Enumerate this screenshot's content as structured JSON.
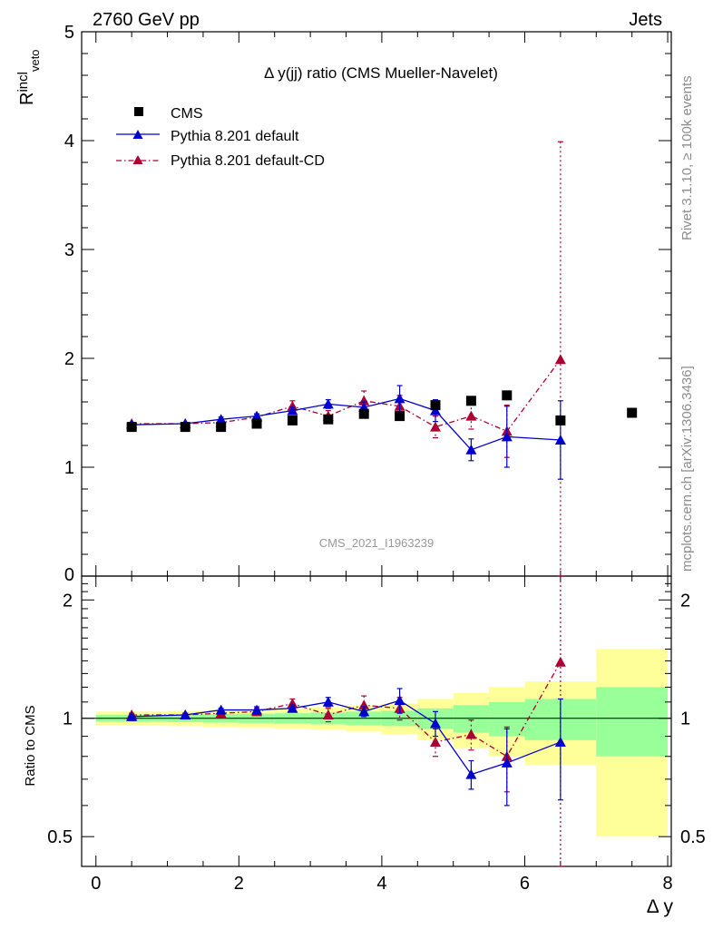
{
  "header": {
    "left": "2760 GeV pp",
    "right": "Jets"
  },
  "side_text": {
    "top": "Rivet 3.1.10, ≥ 100k events",
    "bottom": "mcplots.cern.ch [arXiv:1306.3436]"
  },
  "watermark": "CMS_2021_I1963239",
  "chart_data": {
    "type": "scatter",
    "title": "Δ y(jj) ratio (CMS Mueller-Navelet)",
    "xlabel": "Δ y",
    "xlim": [
      -0.2,
      8.05
    ],
    "x_ticks": [
      "0",
      "2",
      "4",
      "6",
      "8"
    ],
    "top_panel": {
      "ylabel": "R",
      "ylabel_sup": "incl",
      "ylabel_sub": "veto",
      "ylim": [
        0,
        5
      ],
      "y_ticks": [
        "0",
        "1",
        "2",
        "3",
        "4",
        "5"
      ],
      "legend": {
        "placement": "top-left",
        "entries": [
          "CMS",
          "Pythia 8.201 default",
          "Pythia 8.201 default-CD"
        ]
      },
      "series": [
        {
          "name": "CMS",
          "marker": "square",
          "color": "#000000",
          "x": [
            0.5,
            1.25,
            1.75,
            2.25,
            2.75,
            3.25,
            3.75,
            4.25,
            4.75,
            5.25,
            5.75,
            6.5,
            7.5
          ],
          "y": [
            1.37,
            1.37,
            1.37,
            1.4,
            1.43,
            1.44,
            1.49,
            1.47,
            1.57,
            1.61,
            1.66,
            1.43,
            1.5
          ]
        },
        {
          "name": "Pythia 8.201 default",
          "marker": "triangle",
          "color": "#0000cc",
          "line": "solid",
          "x": [
            0.5,
            1.25,
            1.75,
            2.25,
            2.75,
            3.25,
            3.75,
            4.25,
            4.75,
            5.25,
            5.75,
            6.5
          ],
          "y": [
            1.39,
            1.4,
            1.44,
            1.47,
            1.52,
            1.58,
            1.55,
            1.63,
            1.52,
            1.16,
            1.28,
            1.25
          ],
          "err": [
            0.01,
            0.01,
            0.02,
            0.02,
            0.03,
            0.04,
            0.05,
            0.12,
            0.1,
            0.1,
            0.28,
            0.36
          ]
        },
        {
          "name": "Pythia 8.201 default-CD",
          "marker": "triangle",
          "color": "#aa0033",
          "line": "dashdot",
          "x": [
            0.5,
            1.25,
            1.75,
            2.25,
            2.75,
            3.25,
            3.75,
            4.25,
            4.75,
            5.25,
            5.75,
            6.5
          ],
          "y": [
            1.4,
            1.4,
            1.41,
            1.46,
            1.56,
            1.47,
            1.61,
            1.56,
            1.37,
            1.47,
            1.33,
            1.99
          ],
          "err": [
            0.01,
            0.01,
            0.02,
            0.03,
            0.05,
            0.05,
            0.09,
            0.1,
            0.1,
            0.12,
            0.24,
            2.0
          ]
        }
      ]
    },
    "bottom_panel": {
      "ylabel": "Ratio to CMS",
      "ylim": [
        0.42,
        2.3
      ],
      "y_ticks": [
        "0.5",
        "1",
        "2"
      ],
      "bands": {
        "x_edges": [
          0,
          1,
          1.5,
          2,
          2.5,
          3,
          3.5,
          4,
          4.5,
          5,
          5.5,
          6,
          7,
          8
        ],
        "green_half": [
          0.02,
          0.022,
          0.025,
          0.027,
          0.03,
          0.035,
          0.04,
          0.045,
          0.06,
          0.08,
          0.1,
          0.12,
          0.2
        ],
        "yellow_half": [
          0.04,
          0.045,
          0.05,
          0.055,
          0.06,
          0.065,
          0.075,
          0.09,
          0.12,
          0.16,
          0.2,
          0.24,
          0.5
        ]
      },
      "series": [
        {
          "name": "Pythia 8.201 default",
          "marker": "triangle",
          "color": "#0000cc",
          "line": "solid",
          "x": [
            0.5,
            1.25,
            1.75,
            2.25,
            2.75,
            3.25,
            3.75,
            4.25,
            4.75,
            5.25,
            5.75,
            6.5
          ],
          "y": [
            1.01,
            1.02,
            1.05,
            1.05,
            1.06,
            1.1,
            1.04,
            1.11,
            0.97,
            0.72,
            0.77,
            0.87
          ],
          "err": [
            0.01,
            0.01,
            0.01,
            0.02,
            0.02,
            0.03,
            0.03,
            0.08,
            0.07,
            0.06,
            0.17,
            0.25
          ]
        },
        {
          "name": "Pythia 8.201 default-CD",
          "marker": "triangle",
          "color": "#aa0033",
          "line": "dashdot",
          "x": [
            0.5,
            1.25,
            1.75,
            2.25,
            2.75,
            3.25,
            3.75,
            4.25,
            4.75,
            5.25,
            5.75,
            6.5
          ],
          "y": [
            1.02,
            1.02,
            1.03,
            1.04,
            1.09,
            1.02,
            1.08,
            1.06,
            0.87,
            0.91,
            0.8,
            1.39
          ],
          "err": [
            0.01,
            0.01,
            0.01,
            0.02,
            0.03,
            0.04,
            0.06,
            0.07,
            0.07,
            0.08,
            0.15,
            1.2
          ]
        }
      ]
    }
  }
}
